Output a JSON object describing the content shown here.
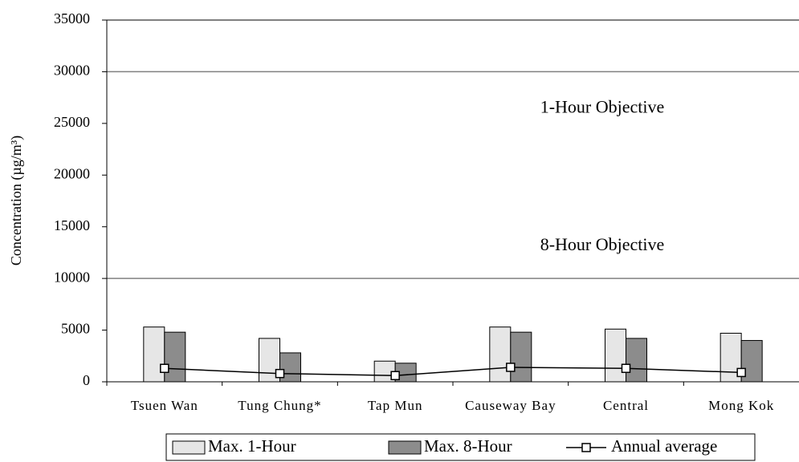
{
  "chart_data": {
    "type": "bar",
    "y_label": "Concentration (µg/m³)",
    "categories": [
      "Tsuen Wan",
      "Tung Chung*",
      "Tap Mun",
      "Causeway Bay",
      "Central",
      "Mong Kok"
    ],
    "series": [
      {
        "name": "Max. 1-Hour",
        "color": "#e6e6e6",
        "type": "bar",
        "values": [
          5300,
          4200,
          2000,
          5300,
          5100,
          4700
        ]
      },
      {
        "name": "Max. 8-Hour",
        "color": "#8c8c8c",
        "type": "bar",
        "values": [
          4800,
          2800,
          1800,
          4800,
          4200,
          4000
        ]
      },
      {
        "name": "Annual average",
        "color": "#000000",
        "type": "line",
        "values": [
          1300,
          800,
          600,
          1400,
          1300,
          900
        ]
      }
    ],
    "reference_lines": [
      {
        "value": 30000,
        "label": "1-Hour Objective"
      },
      {
        "value": 10000,
        "label": "8-Hour Objective"
      }
    ],
    "ylim": [
      0,
      35000
    ],
    "yticks": [
      0,
      5000,
      10000,
      15000,
      20000,
      25000,
      30000,
      35000
    ],
    "grid": false,
    "legend": "bottom"
  }
}
